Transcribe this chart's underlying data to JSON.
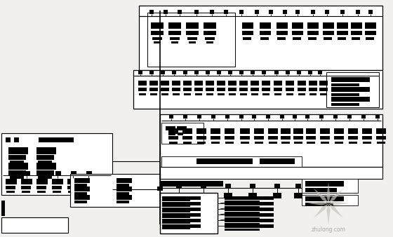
{
  "bg_color": "#f2f0ed",
  "fig_width": 5.6,
  "fig_height": 3.38,
  "dpi": 100,
  "wm_color": "#c8c4bc"
}
